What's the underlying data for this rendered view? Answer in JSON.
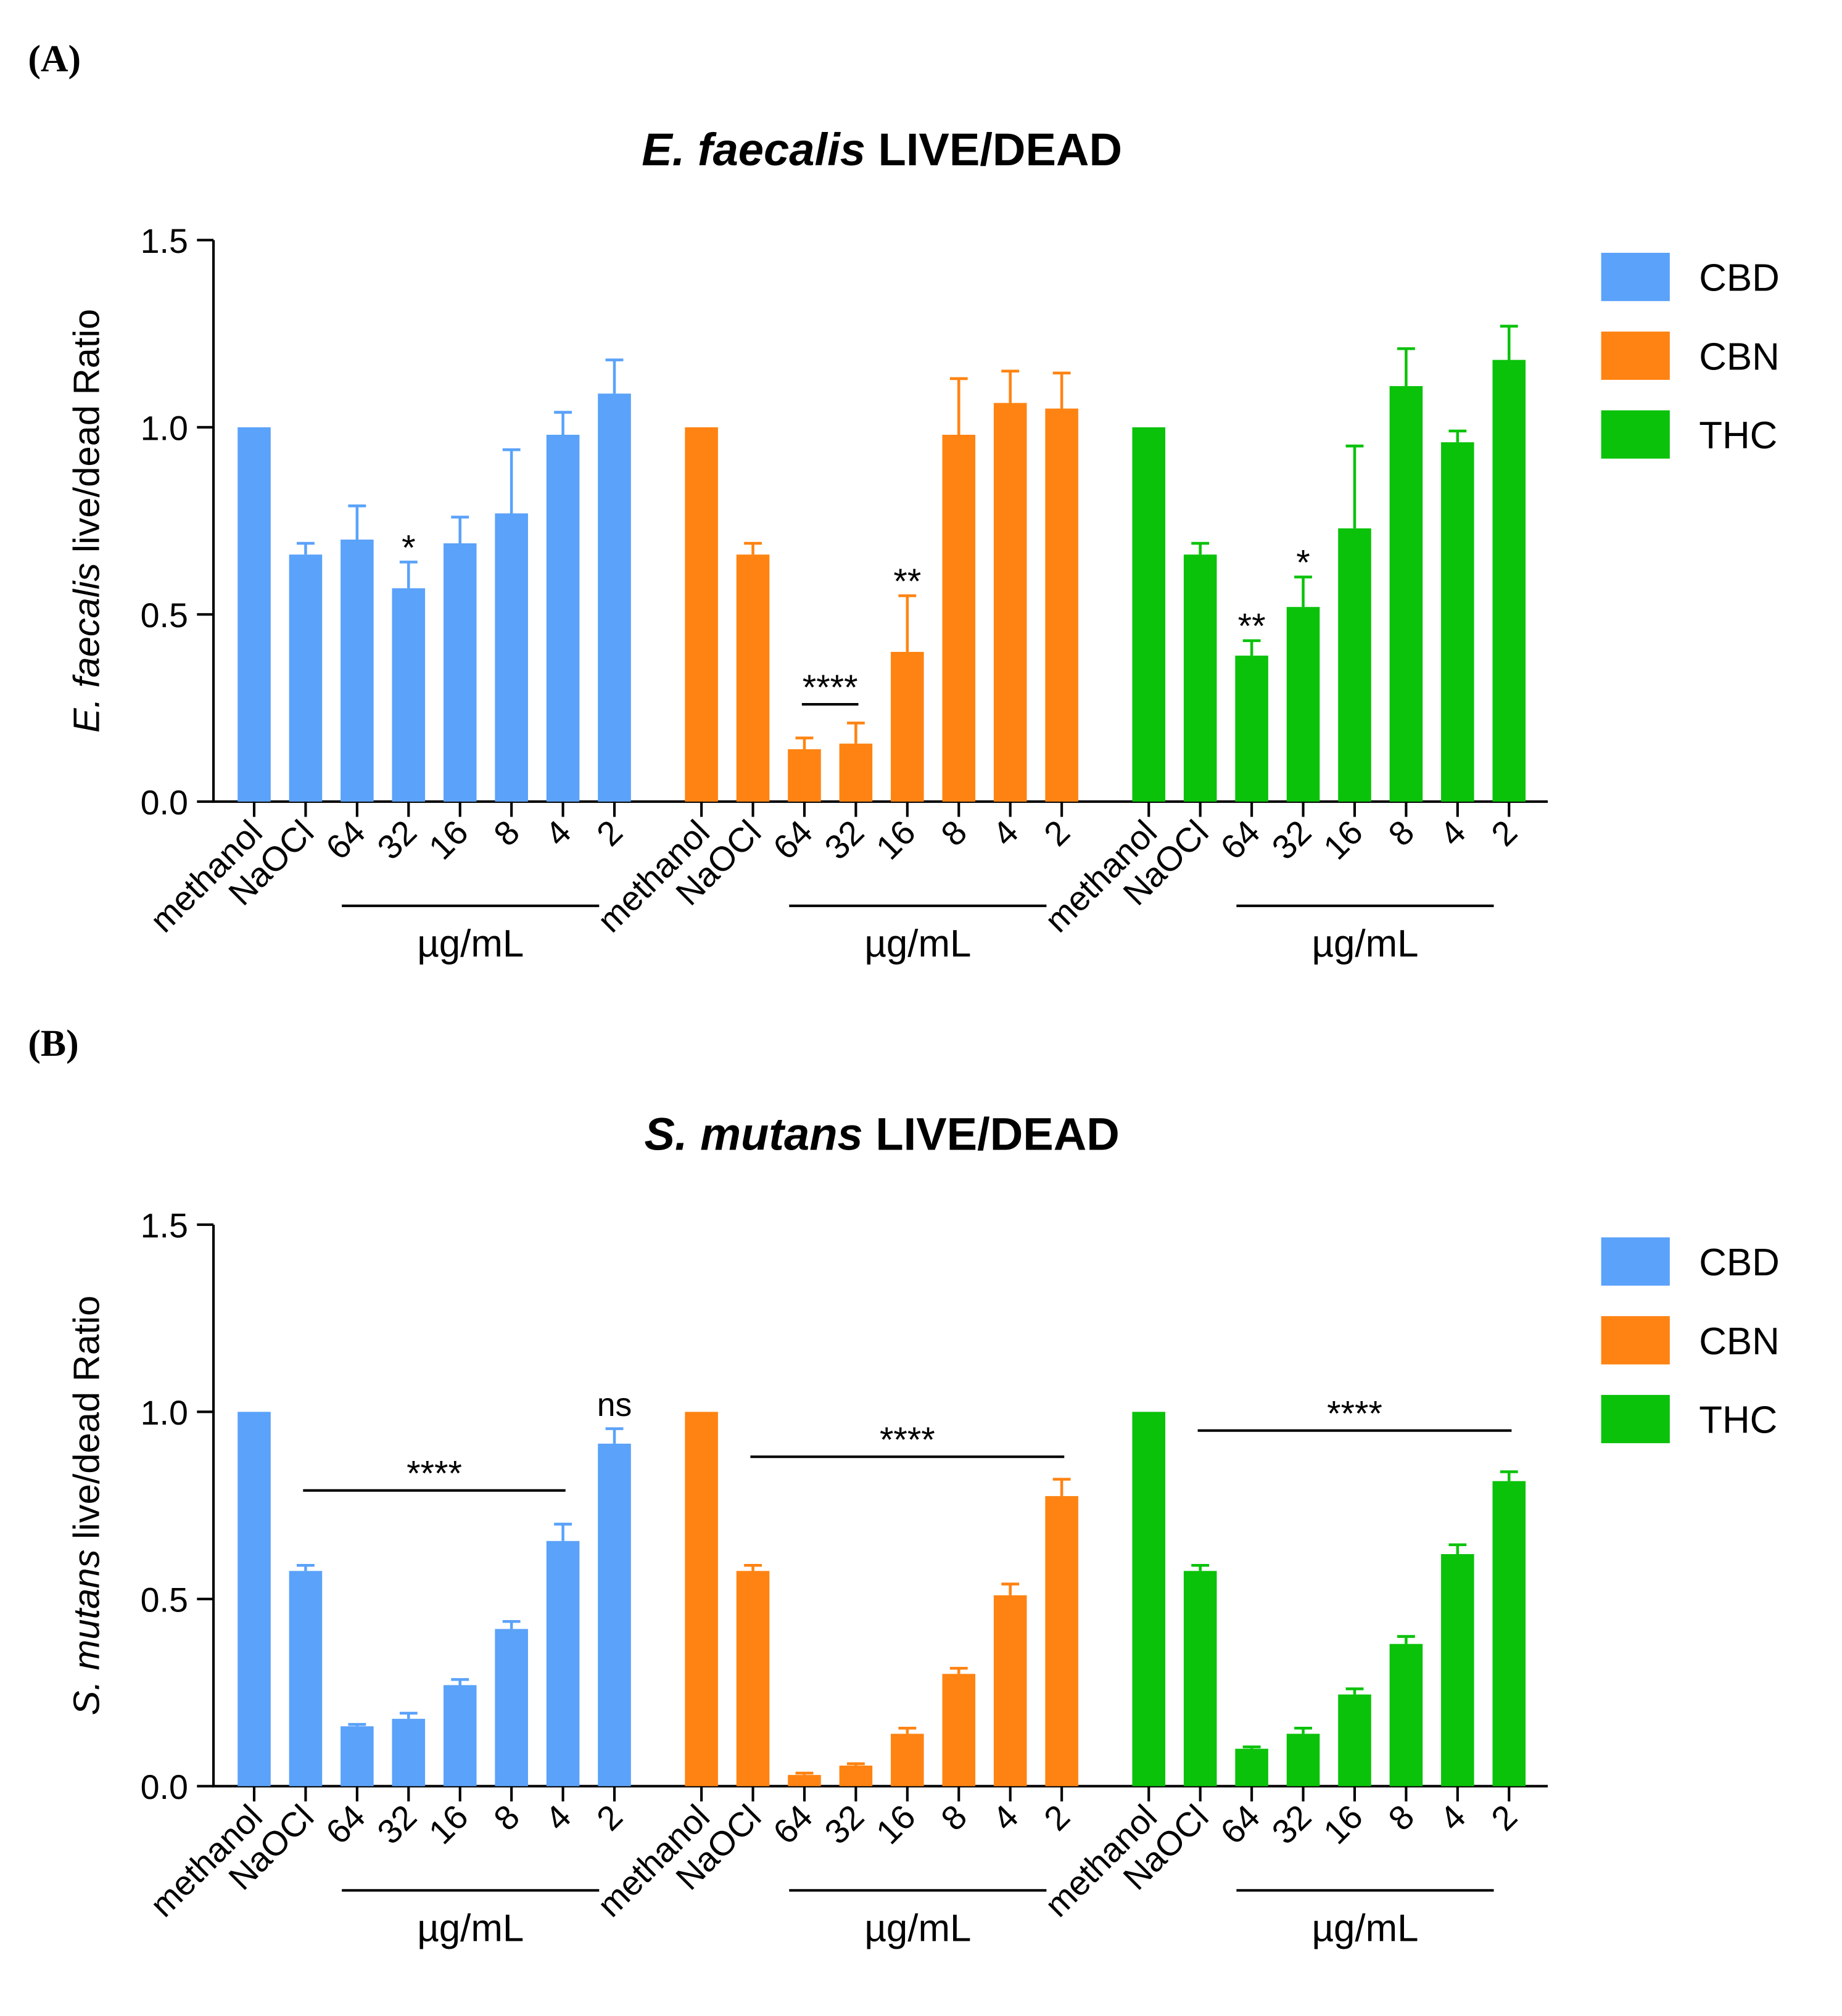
{
  "colors": {
    "CBD": "#5aa2fa",
    "CBN": "#ff8312",
    "THC": "#0ac20a",
    "axis": "#000000"
  },
  "chart_data": [
    {
      "panel_label": "(A)",
      "type": "bar",
      "title_italic": "E. faecalis",
      "title_rest": " LIVE/DEAD",
      "ylabel_italic": "E. faecalis",
      "ylabel_rest": " live/dead Ratio",
      "ylim": [
        0,
        1.5
      ],
      "yticks": [
        "0.0",
        "0.5",
        "1.0",
        "1.5"
      ],
      "unit_label": "µg/mL",
      "categories": [
        "methanol",
        "NaOCl",
        "64",
        "32",
        "16",
        "8",
        "4",
        "2"
      ],
      "legend": [
        "CBD",
        "CBN",
        "THC"
      ],
      "series": [
        {
          "name": "CBD",
          "values": [
            1.0,
            0.66,
            0.7,
            0.57,
            0.69,
            0.77,
            0.98,
            1.09
          ],
          "errors": [
            0,
            0.03,
            0.09,
            0.07,
            0.07,
            0.17,
            0.06,
            0.09
          ]
        },
        {
          "name": "CBN",
          "values": [
            1.0,
            0.66,
            0.14,
            0.155,
            0.4,
            0.98,
            1.065,
            1.05
          ],
          "errors": [
            0,
            0.03,
            0.03,
            0.055,
            0.15,
            0.15,
            0.085,
            0.095
          ]
        },
        {
          "name": "THC",
          "values": [
            1.0,
            0.66,
            0.39,
            0.52,
            0.73,
            1.11,
            0.96,
            1.18
          ],
          "errors": [
            0,
            0.03,
            0.04,
            0.08,
            0.22,
            0.1,
            0.03,
            0.09
          ]
        }
      ],
      "annotations": [
        {
          "series": 0,
          "cat": 3,
          "text": "*"
        },
        {
          "series": 1,
          "cat": 4,
          "text": "**"
        },
        {
          "series": 2,
          "cat": 2,
          "text": "**"
        },
        {
          "series": 2,
          "cat": 3,
          "text": "*"
        }
      ],
      "brackets": [
        {
          "series": 1,
          "from": 2,
          "to": 3,
          "y": 0.26,
          "text": "****"
        }
      ]
    },
    {
      "panel_label": "(B)",
      "type": "bar",
      "title_italic": "S. mutans",
      "title_rest": " LIVE/DEAD",
      "ylabel_italic": "S. mutans",
      "ylabel_rest": " live/dead Ratio",
      "ylim": [
        0,
        1.5
      ],
      "yticks": [
        "0.0",
        "0.5",
        "1.0",
        "1.5"
      ],
      "unit_label": "µg/mL",
      "categories": [
        "methanol",
        "NaOCl",
        "64",
        "32",
        "16",
        "8",
        "4",
        "2"
      ],
      "legend": [
        "CBD",
        "CBN",
        "THC"
      ],
      "series": [
        {
          "name": "CBD",
          "values": [
            1.0,
            0.575,
            0.16,
            0.18,
            0.27,
            0.42,
            0.655,
            0.915
          ],
          "errors": [
            0,
            0.015,
            0.005,
            0.015,
            0.015,
            0.02,
            0.045,
            0.04
          ]
        },
        {
          "name": "CBN",
          "values": [
            1.0,
            0.575,
            0.03,
            0.055,
            0.14,
            0.3,
            0.51,
            0.775
          ],
          "errors": [
            0,
            0.015,
            0.005,
            0.005,
            0.015,
            0.015,
            0.03,
            0.045
          ]
        },
        {
          "name": "THC",
          "values": [
            1.0,
            0.575,
            0.1,
            0.14,
            0.245,
            0.38,
            0.62,
            0.815
          ],
          "errors": [
            0,
            0.015,
            0.005,
            0.015,
            0.015,
            0.02,
            0.025,
            0.025
          ]
        }
      ],
      "annotations": [
        {
          "series": 0,
          "cat": 7,
          "text": "ns"
        }
      ],
      "brackets": [
        {
          "series": 0,
          "from": 1,
          "to": 6,
          "y": 0.79,
          "text": "****"
        },
        {
          "series": 1,
          "from": 1,
          "to": 7,
          "y": 0.88,
          "text": "****"
        },
        {
          "series": 2,
          "from": 1,
          "to": 7,
          "y": 0.95,
          "text": "****"
        }
      ]
    }
  ]
}
